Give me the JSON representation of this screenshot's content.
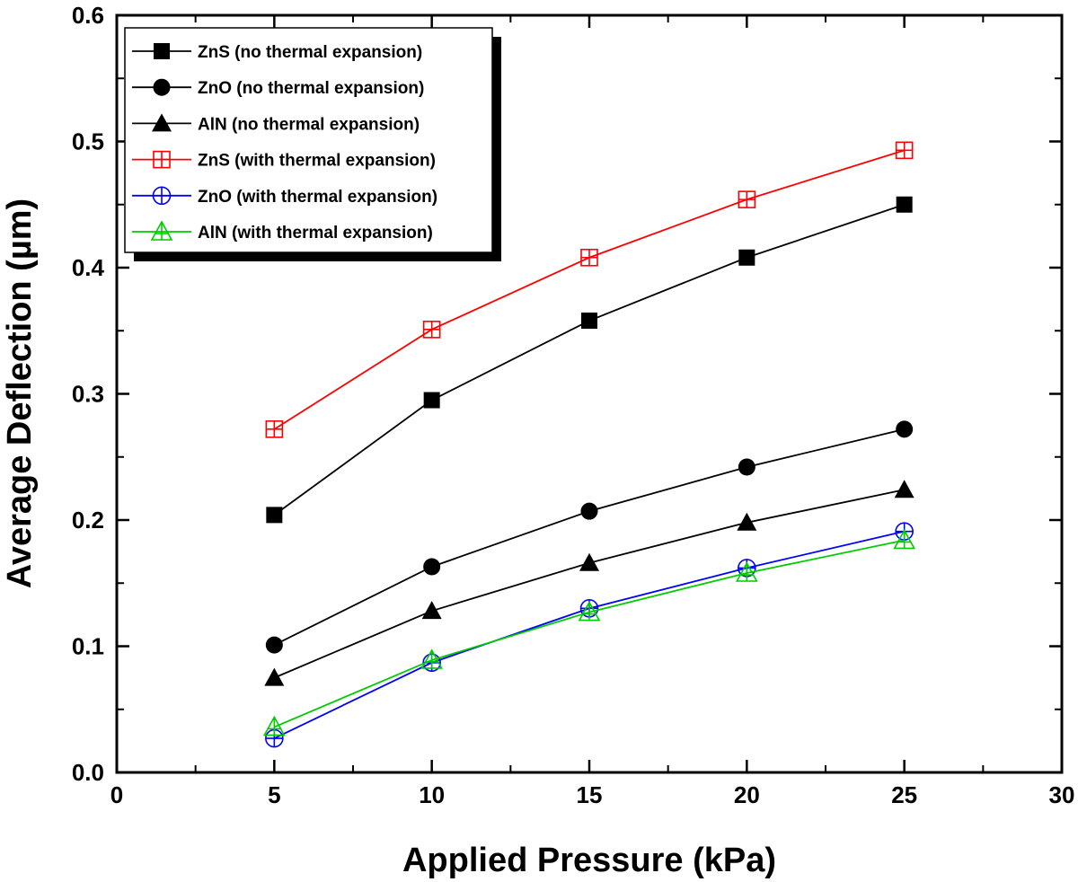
{
  "chart_data": {
    "type": "line",
    "xlabel": "Applied Pressure (kPa)",
    "ylabel": "Average Deflection (µm)",
    "xlim": [
      0,
      30
    ],
    "ylim": [
      0,
      0.6
    ],
    "x_ticks": [
      "0",
      "5",
      "10",
      "15",
      "20",
      "25",
      "30"
    ],
    "y_ticks": [
      "0.0",
      "0.1",
      "0.2",
      "0.3",
      "0.4",
      "0.5",
      "0.6"
    ],
    "x": [
      5,
      10,
      15,
      20,
      25
    ],
    "legend_position": "top-left",
    "grid": false,
    "series": [
      {
        "name": "ZnS (no thermal expansion)",
        "color": "#000000",
        "marker": "square-filled",
        "values": [
          0.204,
          0.295,
          0.358,
          0.408,
          0.45
        ]
      },
      {
        "name": "ZnO (no thermal expansion)",
        "color": "#000000",
        "marker": "circle-filled",
        "values": [
          0.101,
          0.163,
          0.207,
          0.242,
          0.272
        ]
      },
      {
        "name": "AlN (no thermal expansion)",
        "color": "#000000",
        "marker": "triangle-filled",
        "values": [
          0.075,
          0.128,
          0.166,
          0.198,
          0.224
        ]
      },
      {
        "name": "ZnS (with thermal expansion)",
        "color": "#ff0000",
        "marker": "square-cross",
        "values": [
          0.272,
          0.351,
          0.408,
          0.454,
          0.493
        ]
      },
      {
        "name": "ZnO (with thermal expansion)",
        "color": "#0000ff",
        "marker": "circle-cross",
        "values": [
          0.027,
          0.087,
          0.13,
          0.162,
          0.191
        ]
      },
      {
        "name": "AlN (with thermal expansion)",
        "color": "#00cc00",
        "marker": "triangle-cross",
        "values": [
          0.036,
          0.089,
          0.127,
          0.158,
          0.184
        ]
      }
    ]
  }
}
